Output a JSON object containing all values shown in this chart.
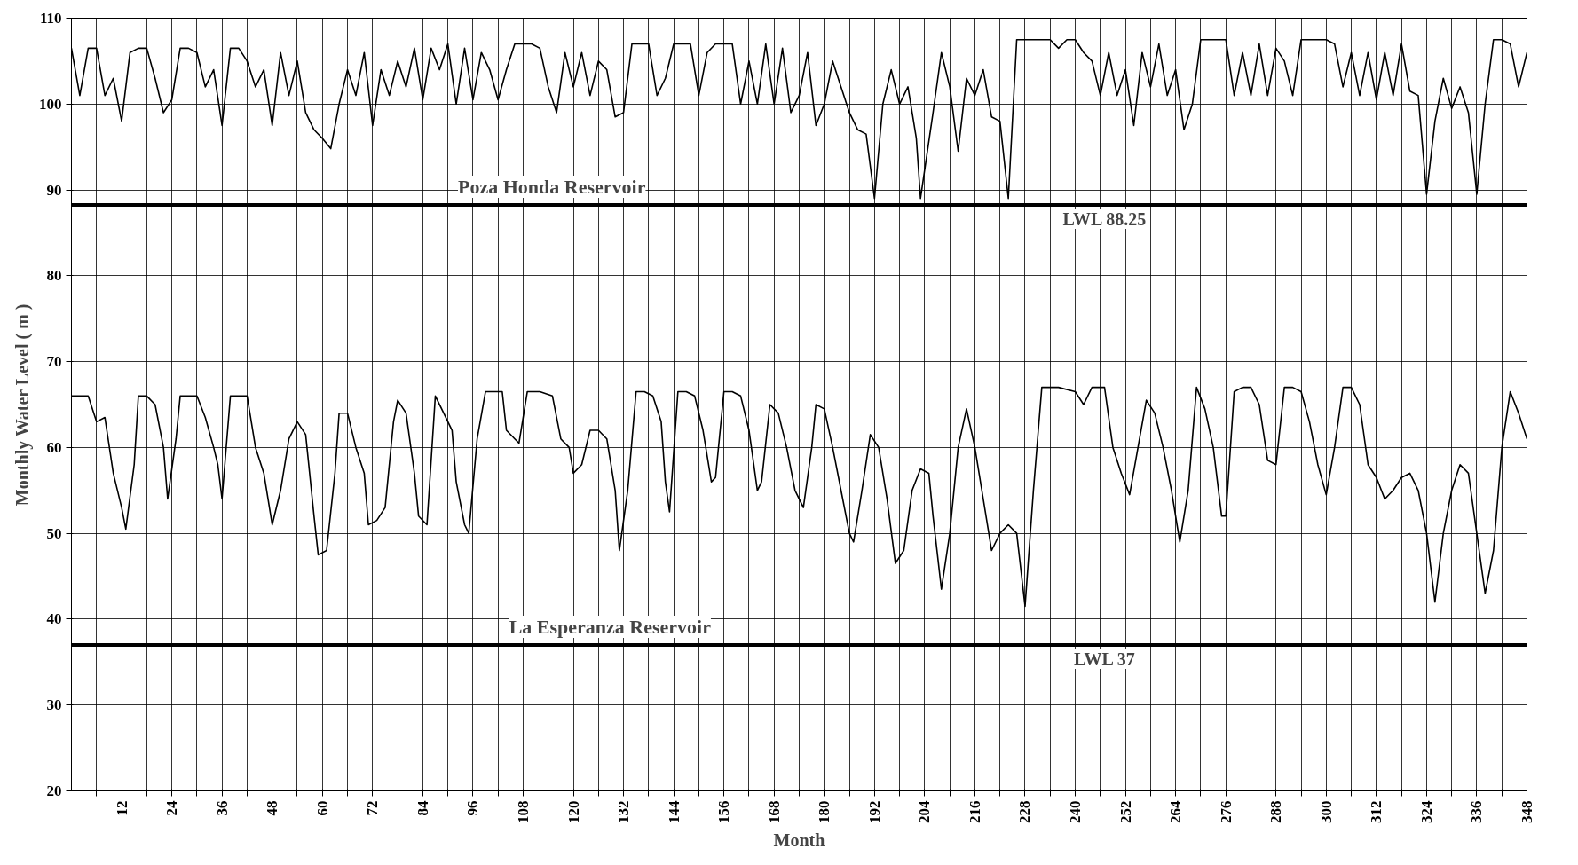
{
  "chart_data": {
    "type": "line",
    "xlabel": "Month",
    "ylabel": "Monthly Water Level ( m )",
    "xlim": [
      0,
      348
    ],
    "ylim": [
      20,
      110
    ],
    "xticks": [
      {
        "value": 6,
        "label": null
      },
      12,
      {
        "value": 18,
        "label": null
      },
      24,
      {
        "value": 30,
        "label": null
      },
      36,
      {
        "value": 42,
        "label": null
      },
      48,
      {
        "value": 54,
        "label": null
      },
      60,
      {
        "value": 66,
        "label": null
      },
      72,
      {
        "value": 78,
        "label": null
      },
      84,
      {
        "value": 90,
        "label": null
      },
      96,
      {
        "value": 102,
        "label": null
      },
      108,
      {
        "value": 114,
        "label": null
      },
      120,
      {
        "value": 126,
        "label": null
      },
      132,
      {
        "value": 138,
        "label": null
      },
      144,
      {
        "value": 150,
        "label": null
      },
      156,
      {
        "value": 162,
        "label": null
      },
      168,
      {
        "value": 174,
        "label": null
      },
      180,
      {
        "value": 186,
        "label": null
      },
      192,
      {
        "value": 198,
        "label": null
      },
      204,
      {
        "value": 210,
        "label": null
      },
      216,
      {
        "value": 222,
        "label": null
      },
      228,
      {
        "value": 234,
        "label": null
      },
      240,
      {
        "value": 246,
        "label": null
      },
      252,
      {
        "value": 258,
        "label": null
      },
      264,
      {
        "value": 270,
        "label": null
      },
      276,
      {
        "value": 282,
        "label": null
      },
      288,
      {
        "value": 294,
        "label": null
      },
      300,
      {
        "value": 306,
        "label": null
      },
      312,
      {
        "value": 318,
        "label": null
      },
      324,
      {
        "value": 330,
        "label": null
      },
      336,
      {
        "value": 342,
        "label": null
      },
      348
    ],
    "yticks": [
      20,
      30,
      40,
      50,
      60,
      70,
      80,
      90,
      100,
      110
    ],
    "grid": true,
    "marker": "none",
    "line_style": "solid",
    "series": [
      {
        "color": "#000000",
        "x": [
          0,
          2,
          4,
          6,
          8,
          10,
          12,
          14,
          16,
          18,
          20,
          22,
          24,
          26,
          28,
          30,
          32,
          34,
          36,
          38,
          40,
          42,
          44,
          46,
          48,
          50,
          52,
          54,
          56,
          58,
          60,
          62,
          64,
          66,
          68,
          70,
          72,
          74,
          76,
          78,
          80,
          82,
          84,
          86,
          88,
          90,
          92,
          94,
          96,
          98,
          100,
          102,
          104,
          106,
          108,
          110,
          112,
          114,
          116,
          118,
          120,
          122,
          124,
          126,
          128,
          130,
          132,
          134,
          136,
          138,
          140,
          142,
          144,
          146,
          148,
          150,
          152,
          154,
          156,
          158,
          160,
          162,
          164,
          166,
          168,
          170,
          172,
          174,
          176,
          178,
          180,
          182,
          184,
          186,
          188,
          190,
          192,
          194,
          196,
          198,
          200,
          202,
          203,
          206,
          208,
          210,
          212,
          214,
          216,
          218,
          220,
          222,
          224,
          226,
          228,
          230,
          232,
          234,
          236,
          238,
          240,
          242,
          244,
          246,
          248,
          250,
          252,
          254,
          256,
          258,
          260,
          262,
          264,
          266,
          268,
          270,
          272,
          274,
          276,
          278,
          280,
          282,
          284,
          286,
          288,
          290,
          292,
          294,
          296,
          298,
          300,
          302,
          304,
          306,
          308,
          310,
          312,
          314,
          316,
          318,
          320,
          322,
          324,
          326,
          328,
          330,
          332,
          334,
          336,
          338,
          340,
          342,
          344,
          346,
          348
        ],
        "values": [
          106.5,
          101,
          106.5,
          106.5,
          101,
          103,
          98,
          106,
          106.5,
          106.5,
          103,
          99,
          100.5,
          106.5,
          106.5,
          106,
          102,
          104,
          97.5,
          106.5,
          106.5,
          105,
          102,
          104,
          97.5,
          106,
          101,
          105,
          99,
          97,
          96,
          94.8,
          100,
          104,
          101,
          106,
          97.5,
          104,
          101,
          105,
          102,
          106.5,
          100.5,
          106.5,
          104,
          107,
          100,
          106.5,
          100.5,
          106,
          104,
          100.5,
          104,
          107,
          107,
          107,
          106.5,
          102,
          99,
          106,
          102,
          106,
          101,
          105,
          104,
          98.5,
          99,
          107,
          107,
          107,
          101,
          103,
          107,
          107,
          107,
          101,
          106,
          107,
          107,
          107,
          100,
          105,
          100,
          107,
          100,
          106.5,
          99,
          101,
          106,
          97.5,
          100,
          105,
          102,
          99,
          97,
          96.5,
          89,
          100,
          104,
          100,
          102,
          96,
          89,
          99,
          106,
          102,
          94.5,
          103,
          101,
          104,
          98.5,
          98,
          89,
          107.5,
          107.5,
          107.5,
          107.5,
          107.5,
          106.5,
          107.5,
          107.5,
          106,
          105,
          101,
          106,
          101,
          104,
          97.5,
          106,
          102,
          107,
          101,
          104,
          97,
          100,
          107.5,
          107.5,
          107.5,
          107.5,
          101,
          106,
          101,
          107,
          101,
          106.5,
          105,
          101,
          107.5,
          107.5,
          107.5,
          107.5,
          107,
          102,
          106,
          101,
          106,
          100.5,
          106,
          101,
          107,
          101.5,
          101,
          89.5,
          98,
          103,
          99.5,
          102,
          99,
          89.5,
          100,
          107.5,
          107.5,
          107,
          102,
          106
        ]
      },
      {
        "color": "#000000",
        "x": [
          0,
          4,
          6,
          8,
          10,
          12,
          13,
          15,
          16,
          18,
          20,
          22,
          23,
          25,
          26,
          28,
          30,
          32,
          34,
          35,
          36,
          38,
          40,
          42,
          44,
          46,
          48,
          50,
          52,
          54,
          56,
          58,
          59,
          61,
          63,
          64,
          66,
          68,
          70,
          71,
          73,
          75,
          77,
          78,
          80,
          82,
          83,
          85,
          87,
          89,
          91,
          92,
          94,
          95,
          97,
          99,
          101,
          103,
          104,
          106,
          107,
          109,
          112,
          115,
          117,
          119,
          120,
          122,
          124,
          126,
          128,
          130,
          131,
          133,
          135,
          137,
          139,
          141,
          142,
          143,
          145,
          147,
          149,
          151,
          153,
          154,
          156,
          158,
          160,
          162,
          164,
          165,
          167,
          169,
          171,
          173,
          175,
          177,
          178,
          180,
          182,
          184,
          186,
          187,
          189,
          191,
          193,
          195,
          197,
          199,
          201,
          203,
          205,
          206,
          208,
          210,
          212,
          214,
          216,
          218,
          220,
          222,
          224,
          226,
          228,
          230,
          232,
          236,
          240,
          242,
          244,
          247,
          249,
          251,
          253,
          255,
          257,
          259,
          261,
          263,
          265,
          267,
          269,
          271,
          273,
          275,
          276,
          278,
          280,
          282,
          284,
          286,
          288,
          290,
          292,
          294,
          296,
          298,
          300,
          302,
          304,
          306,
          308,
          310,
          312,
          314,
          316,
          318,
          320,
          322,
          324,
          326,
          328,
          330,
          332,
          334,
          336,
          338,
          340,
          342,
          344,
          346,
          348
        ],
        "values": [
          66,
          66,
          63,
          63.5,
          57,
          53,
          50.5,
          58,
          66,
          66,
          65,
          60,
          54,
          61,
          66,
          66,
          66,
          63.5,
          60,
          58,
          54,
          66,
          66,
          66,
          60,
          57,
          51,
          55,
          61,
          63,
          61.5,
          52,
          47.5,
          48,
          57,
          64,
          64,
          60,
          57,
          51,
          51.5,
          53,
          63,
          65.5,
          64,
          57,
          52,
          51,
          66,
          64,
          62,
          56,
          51,
          50,
          61,
          66.5,
          66.5,
          66.5,
          62,
          61,
          60.5,
          66.5,
          66.5,
          66,
          61,
          60,
          57,
          58,
          62,
          62,
          61,
          55,
          48,
          55,
          66.5,
          66.5,
          66,
          63,
          56,
          52.5,
          66.5,
          66.5,
          66,
          62,
          56,
          56.5,
          66.5,
          66.5,
          66,
          62,
          55,
          56,
          65,
          64,
          60,
          55,
          53,
          60,
          65,
          64.5,
          60,
          55,
          50,
          49,
          55,
          61.5,
          60,
          54,
          46.5,
          48,
          55,
          57.5,
          57,
          52,
          43.5,
          50,
          60,
          64.5,
          60,
          54,
          48,
          50,
          51,
          50,
          41.5,
          55,
          67,
          67,
          66.5,
          65,
          67,
          67,
          60,
          57,
          54.5,
          60,
          65.5,
          64,
          60,
          55,
          49,
          55,
          67,
          64.5,
          60,
          52,
          52,
          66.5,
          67,
          67,
          65,
          58.5,
          58,
          67,
          67,
          66.5,
          63,
          58,
          54.5,
          60,
          67,
          67,
          65,
          58,
          56.5,
          54,
          55,
          56.5,
          57,
          55,
          50,
          42,
          50,
          55,
          58,
          57,
          50,
          43,
          48,
          60,
          66.5,
          64,
          61
        ]
      }
    ],
    "ref_lines": [
      {
        "axis": "y",
        "value": 88.25,
        "label": "LWL 88.25",
        "color": "#000000"
      },
      {
        "axis": "y",
        "value": 37,
        "label": "LWL 37",
        "color": "#000000"
      }
    ],
    "annotations": [
      "Poza Honda Reservoir",
      "La Esperanza Reservoir"
    ]
  }
}
